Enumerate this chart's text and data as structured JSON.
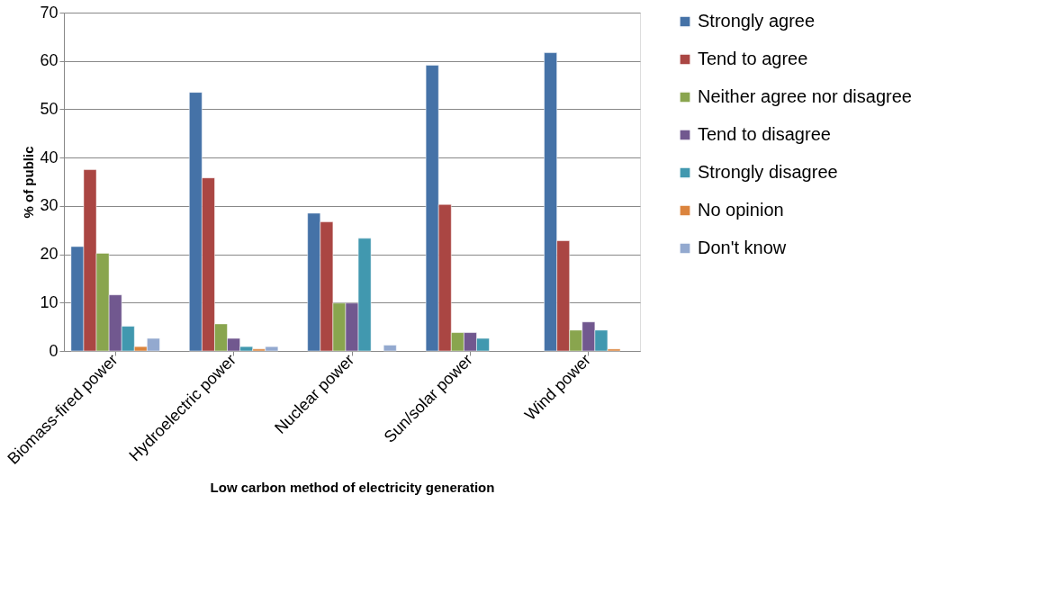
{
  "chart_data": {
    "type": "bar",
    "xlabel": "Low carbon method of electricity generation",
    "ylabel": "% of public",
    "categories": [
      "Biomass-fired power",
      "Hydroelectric power",
      "Nuclear power",
      "Sun/solar power",
      "Wind power"
    ],
    "series": [
      {
        "name": "Strongly agree",
        "color": "#4572a7",
        "values": [
          21.6,
          53.5,
          28.5,
          59.1,
          61.7
        ]
      },
      {
        "name": "Tend to agree",
        "color": "#aa4643",
        "values": [
          37.5,
          35.8,
          26.7,
          30.3,
          22.8
        ]
      },
      {
        "name": "Neither agree nor disagree",
        "color": "#89a54e",
        "values": [
          20.2,
          5.6,
          9.9,
          3.8,
          4.3
        ]
      },
      {
        "name": "Tend to disagree",
        "color": "#71588f",
        "values": [
          11.6,
          2.6,
          9.9,
          3.8,
          6.0
        ]
      },
      {
        "name": "Strongly disagree",
        "color": "#4198af",
        "values": [
          5.1,
          0.9,
          23.3,
          2.6,
          4.3
        ]
      },
      {
        "name": "No opinion",
        "color": "#db843d",
        "values": [
          0.9,
          0.4,
          null,
          null,
          0.4
        ]
      },
      {
        "name": "Don't know",
        "color": "#93a9cf",
        "values": [
          2.6,
          0.9,
          1.2,
          null,
          null
        ]
      }
    ],
    "ylim": [
      0,
      70
    ],
    "yticks": [
      0,
      10,
      20,
      30,
      40,
      50,
      60,
      70
    ],
    "grid": "y",
    "legend": "right"
  }
}
